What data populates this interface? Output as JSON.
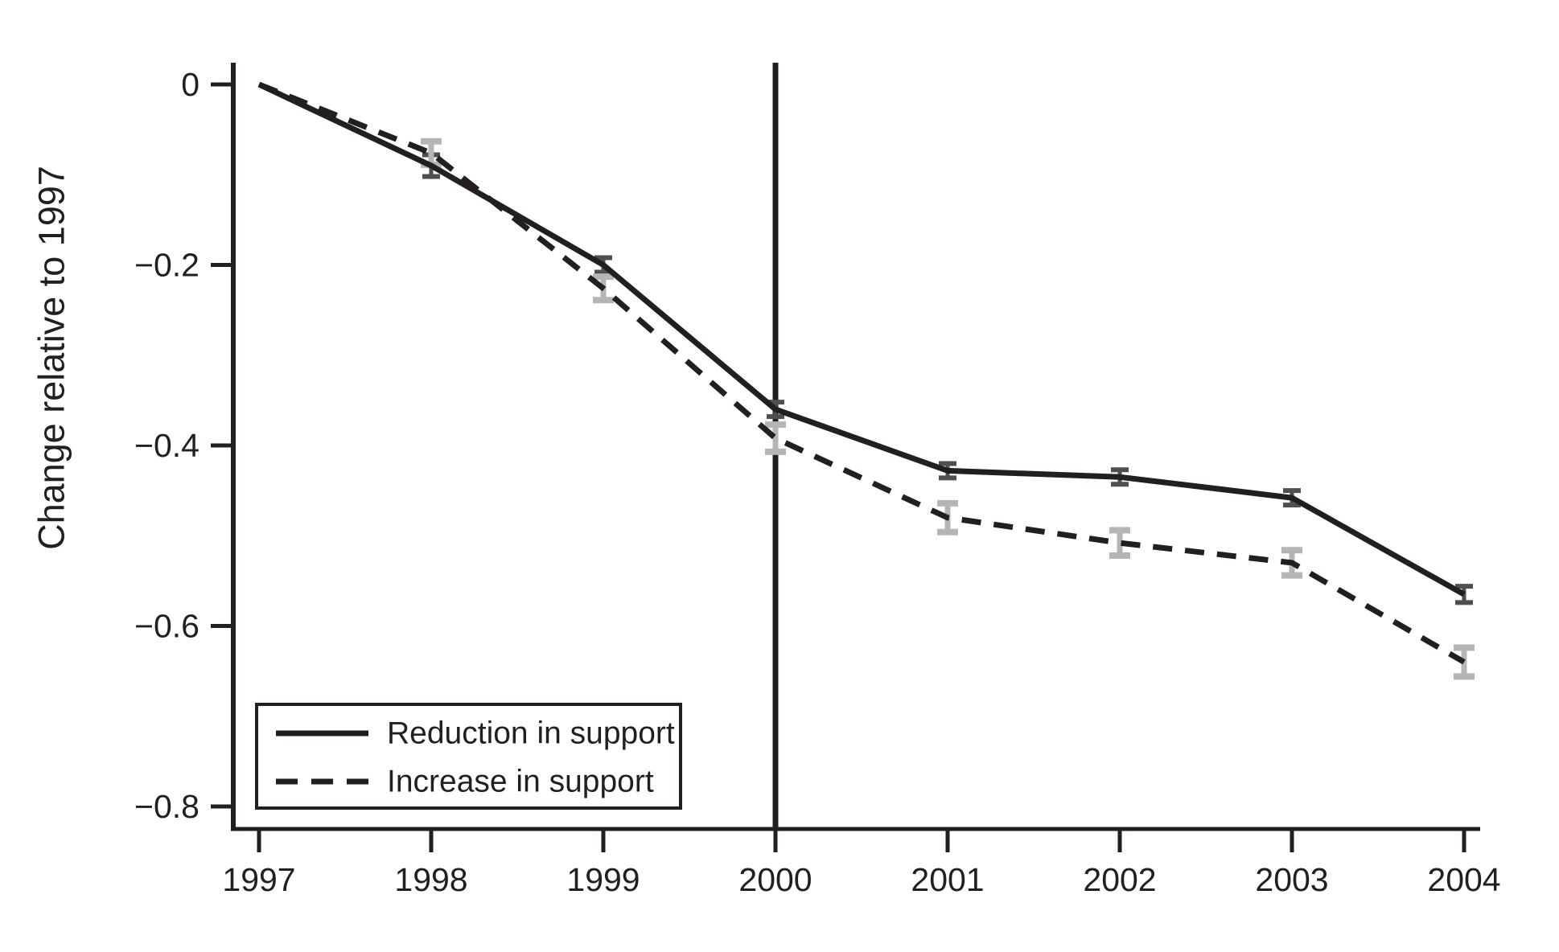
{
  "figure": {
    "background": "#ffffff",
    "text_color": "#231f20",
    "axis_color": "#231f20"
  },
  "chart_data": {
    "type": "line",
    "title": "",
    "xlabel": "",
    "ylabel": "Change relative to 1997",
    "grid": false,
    "x": [
      1997,
      1998,
      1999,
      2000,
      2001,
      2002,
      2003,
      2004
    ],
    "x_tick_labels": [
      "1997",
      "1998",
      "1999",
      "2000",
      "2001",
      "2002",
      "2003",
      "2004"
    ],
    "y_ticks": {
      "labels": [
        "0",
        "−0.2",
        "−0.4",
        "−0.6",
        "−0.8"
      ],
      "values": [
        0,
        -0.2,
        -0.4,
        -0.6,
        -0.8
      ]
    },
    "ylim": [
      -0.83,
      0.025
    ],
    "xlim": [
      1996.85,
      2004.08
    ],
    "reference_line": {
      "axis": "x",
      "value": 2000,
      "color": "#231f20"
    },
    "series": [
      {
        "name": "Reduction in support",
        "style": "solid",
        "color": "#231f20",
        "error_color": "#4f4f4f",
        "values": [
          0,
          -0.09,
          -0.2,
          -0.36,
          -0.428,
          -0.435,
          -0.458,
          -0.565
        ],
        "errors": [
          0,
          0.012,
          0.008,
          0.008,
          0.008,
          0.008,
          0.008,
          0.009
        ]
      },
      {
        "name": "Increase in support",
        "style": "dashed",
        "color": "#231f20",
        "error_color": "#b5b5b5",
        "values": [
          0,
          -0.076,
          -0.226,
          -0.392,
          -0.48,
          -0.508,
          -0.53,
          -0.64
        ],
        "errors": [
          0,
          0.013,
          0.013,
          0.015,
          0.016,
          0.014,
          0.014,
          0.016
        ]
      }
    ],
    "legend": {
      "position": "bottom-left",
      "border": true,
      "entries": [
        "Reduction in support",
        "Increase in support"
      ]
    }
  }
}
